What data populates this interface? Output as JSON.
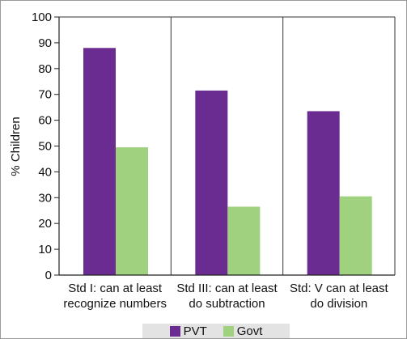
{
  "chart_data": {
    "type": "bar",
    "ylabel": "% Children",
    "ylim": [
      0,
      100
    ],
    "yticks": [
      0,
      10,
      20,
      30,
      40,
      50,
      60,
      70,
      80,
      90,
      100
    ],
    "categories": [
      [
        "Std I: can at least",
        "recognize numbers"
      ],
      [
        "Std III: can at least",
        "do subtraction"
      ],
      [
        "Std: V can at least",
        "do division"
      ]
    ],
    "series": [
      {
        "name": "PVT",
        "color": "#6a2c91",
        "values": [
          88,
          71.5,
          63.5
        ]
      },
      {
        "name": "Govt",
        "color": "#9fd17f",
        "values": [
          49.5,
          26.5,
          30.5
        ]
      }
    ],
    "grid": {
      "vertical": true,
      "horizontal": false
    },
    "legend_position": "bottom"
  }
}
